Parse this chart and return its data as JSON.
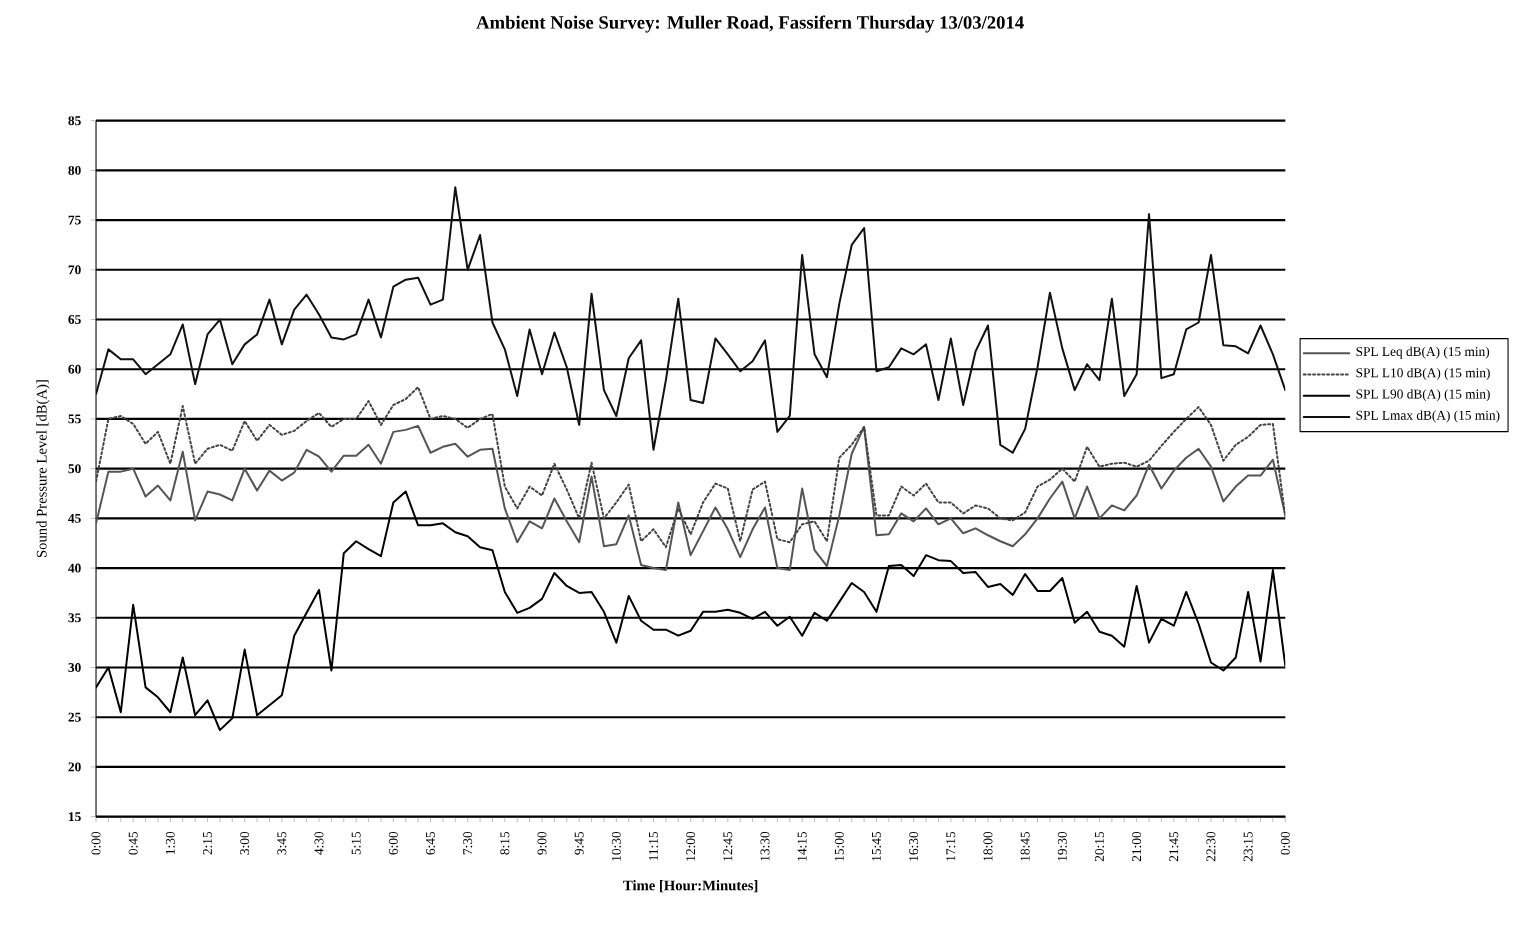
{
  "chart_data": {
    "type": "line",
    "title": "Ambient  Noise Survey: Muller Road, Fassifern Thursday  13/03/2014",
    "xlabel": "Time [Hour:Minutes]",
    "ylabel": "Sound Pressure Level  [dB(A)]",
    "categories": [
      "0:00",
      null,
      null,
      "0:45",
      null,
      null,
      "1:30",
      null,
      null,
      "2:15",
      null,
      null,
      "3:00",
      null,
      null,
      "3:45",
      null,
      null,
      "4:30",
      null,
      null,
      "5:15",
      null,
      null,
      "6:00",
      null,
      null,
      "6:45",
      null,
      null,
      "7:30",
      null,
      null,
      "8:15",
      null,
      null,
      "9:00",
      null,
      null,
      "9:45",
      null,
      null,
      "10:30",
      null,
      null,
      "11:15",
      null,
      null,
      "12:00",
      null,
      null,
      "12:45",
      null,
      null,
      "13:30",
      null,
      null,
      "14:15",
      null,
      null,
      "15:00",
      null,
      null,
      "15:45",
      null,
      null,
      "16:30",
      null,
      null,
      "17:15",
      null,
      null,
      "18:00",
      null,
      null,
      "18:45",
      null,
      null,
      "19:30",
      null,
      null,
      "20:15",
      null,
      null,
      "21:00",
      null,
      null,
      "21:45",
      null,
      null,
      "22:30",
      null,
      null,
      "23:15",
      null,
      null,
      "0:00"
    ],
    "series": [
      {
        "name": "SPL Leq dB(A) (15 min)",
        "color": "#555555",
        "line_style": "solid",
        "values": [
          44.5,
          49.7,
          49.7,
          50,
          47.2,
          48.3,
          46.8,
          51.7,
          44.8,
          47.7,
          47.4,
          46.8,
          50,
          47.8,
          49.8,
          48.8,
          49.6,
          51.9,
          51.2,
          49.7,
          51.3,
          51.3,
          52.4,
          50.5,
          53.7,
          53.9,
          54.3,
          51.6,
          52.2,
          52.5,
          51.2,
          51.9,
          52,
          46,
          42.6,
          44.7,
          44,
          47,
          44.7,
          42.6,
          49.2,
          42.2,
          42.4,
          45.3,
          40.3,
          40,
          39.8,
          46.6,
          41.3,
          43.7,
          46.1,
          43.9,
          41.1,
          43.9,
          46.1,
          40,
          39.8,
          48,
          41.8,
          40.2,
          45.3,
          51.5,
          54.2,
          43.3,
          43.4,
          45.5,
          44.7,
          46,
          44.4,
          45,
          43.5,
          44,
          43.3,
          42.7,
          42.2,
          43.4,
          45,
          47,
          48.7,
          45,
          48.2,
          45,
          46.3,
          45.8,
          47.3,
          50.4,
          48,
          49.8,
          51.1,
          52,
          50.2,
          46.7,
          48.2,
          49.3,
          49.3,
          50.9,
          45.3
        ]
      },
      {
        "name": "SPL L10 dB(A) (15 min)",
        "color": "#444444",
        "line_style": "dotted",
        "values": [
          48.7,
          55,
          55.3,
          54.5,
          52.5,
          53.7,
          50.5,
          56.3,
          50.5,
          52,
          52.4,
          51.8,
          54.8,
          52.8,
          54.4,
          53.4,
          53.8,
          54.8,
          55.6,
          54.2,
          55,
          55,
          56.8,
          54.4,
          56.4,
          57,
          58.2,
          55,
          55.3,
          55,
          54.1,
          55,
          55.5,
          48.2,
          46,
          48.2,
          47.3,
          50.5,
          47.9,
          45,
          50.6,
          45,
          46.6,
          48.4,
          42.7,
          43.9,
          42.1,
          46,
          43.4,
          46.6,
          48.5,
          48,
          42.7,
          47.9,
          48.7,
          42.9,
          42.6,
          44.4,
          44.7,
          42.7,
          51.1,
          52.4,
          54.2,
          45.3,
          45.3,
          48.2,
          47.3,
          48.5,
          46.6,
          46.6,
          45.5,
          46.3,
          46,
          45,
          44.8,
          45.6,
          48.2,
          48.9,
          50,
          48.7,
          52.2,
          50.2,
          50.5,
          50.6,
          50.2,
          50.8,
          52.3,
          53.7,
          55,
          56.2,
          54.4,
          50.8,
          52.4,
          53.2,
          54.4,
          54.5,
          45.2
        ]
      },
      {
        "name": "SPL L90 dB(A) (15 min)",
        "color": "#000000",
        "line_style": "solid",
        "values": [
          28,
          30,
          25.5,
          36.3,
          28,
          27,
          25.5,
          31,
          25.2,
          26.7,
          23.7,
          24.9,
          31.8,
          25.2,
          26.2,
          27.2,
          33.2,
          35.5,
          37.8,
          29.7,
          41.5,
          42.7,
          41.9,
          41.2,
          46.6,
          47.7,
          44.3,
          44.3,
          44.5,
          43.6,
          43.2,
          42.1,
          41.8,
          37.6,
          35.5,
          36,
          36.9,
          39.5,
          38.2,
          37.5,
          37.6,
          35.6,
          32.5,
          37.2,
          34.7,
          33.8,
          33.8,
          33.2,
          33.7,
          35.6,
          35.6,
          35.8,
          35.5,
          34.9,
          35.6,
          34.2,
          35.1,
          33.2,
          35.5,
          34.7,
          36.6,
          38.5,
          37.6,
          35.6,
          40.2,
          40.3,
          39.2,
          41.3,
          40.8,
          40.7,
          39.5,
          39.6,
          38.1,
          38.4,
          37.3,
          39.4,
          37.7,
          37.7,
          39,
          34.5,
          35.6,
          33.6,
          33.2,
          32.1,
          38.2,
          32.5,
          34.9,
          34.2,
          37.6,
          34.4,
          30.5,
          29.7,
          31,
          37.6,
          30.6,
          39.8,
          30.2
        ]
      },
      {
        "name": "SPL Lmax dB(A) (15 min)",
        "color": "#111111",
        "line_style": "solid",
        "values": [
          57.5,
          62,
          61,
          61,
          59.5,
          60.5,
          61.5,
          64.5,
          58.5,
          63.5,
          65,
          60.5,
          62.5,
          63.5,
          67,
          62.5,
          66,
          67.5,
          65.5,
          63.2,
          63,
          63.5,
          67,
          63.2,
          68.3,
          69,
          69.2,
          66.5,
          67,
          78.3,
          70,
          73.5,
          64.7,
          62,
          57.3,
          64,
          59.5,
          63.7,
          60.2,
          54.4,
          67.6,
          57.9,
          55.3,
          61.1,
          62.9,
          51.9,
          58.9,
          67.1,
          56.9,
          56.6,
          63.1,
          61.5,
          59.8,
          60.8,
          62.9,
          53.7,
          55.3,
          71.5,
          61.5,
          59.2,
          66.6,
          72.5,
          74.2,
          59.8,
          60.2,
          62.1,
          61.5,
          62.5,
          56.9,
          63.1,
          56.4,
          61.8,
          64.4,
          52.4,
          51.6,
          54,
          60.2,
          67.7,
          62.1,
          57.9,
          60.5,
          58.9,
          67.1,
          57.3,
          59.5,
          75.6,
          59.1,
          59.5,
          64,
          64.7,
          71.5,
          62.4,
          62.3,
          61.6,
          64.4,
          61.5,
          57.9
        ]
      }
    ],
    "ylim": [
      15,
      85
    ],
    "yticks": [
      15,
      20,
      25,
      30,
      35,
      40,
      45,
      50,
      55,
      60,
      65,
      70,
      75,
      80,
      85
    ],
    "grid": "y",
    "legend": "right"
  }
}
